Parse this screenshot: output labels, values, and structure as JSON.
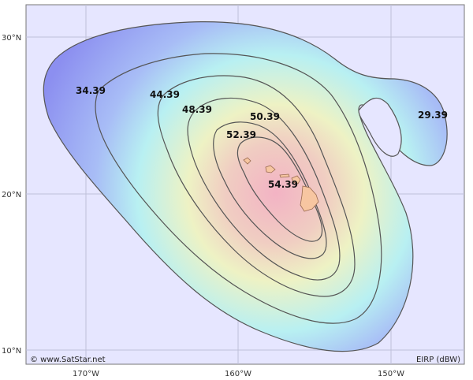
{
  "map": {
    "copyright": "© www.SatStar.net",
    "unit_label": "EIRP (dBW)",
    "lat_labels": [
      "30°N",
      "20°N",
      "10°N"
    ],
    "lon_labels": [
      "170°W",
      "160°W",
      "150°W"
    ],
    "contour_labels": [
      "34.39",
      "44.39",
      "48.39",
      "50.39",
      "52.39",
      "54.39",
      "29.39"
    ],
    "colors": {
      "background": "#e6e6ff",
      "outer_fill": "#8c8ff0",
      "mid_fill": "#a6f2f4",
      "yellow_fill": "#eef2c4",
      "center_fill": "#f3b3c4",
      "contour_stroke": "#555555",
      "island_fill": "#f7c6a1",
      "island_stroke": "#9a6b50"
    }
  }
}
